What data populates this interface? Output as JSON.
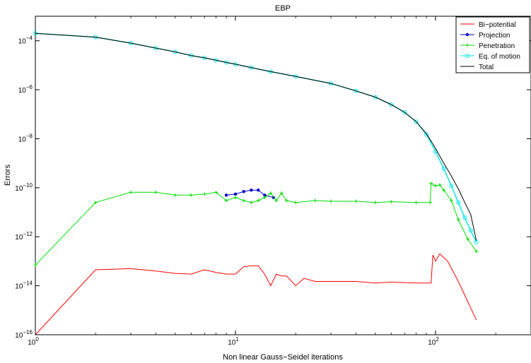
{
  "chart_data": {
    "type": "line",
    "title": "EBP",
    "xlabel": "Non linear Gauss−Seidel iterations",
    "ylabel": "Errors",
    "xscale": "log",
    "yscale": "log",
    "xlim": [
      1,
      300
    ],
    "ylim": [
      1e-16,
      0.001
    ],
    "grid": false,
    "legend": "top-right",
    "xticks": [
      {
        "value": 1,
        "base": "10",
        "exp": "0"
      },
      {
        "value": 10,
        "base": "10",
        "exp": "1"
      },
      {
        "value": 100,
        "base": "10",
        "exp": "2"
      }
    ],
    "yticks": [
      {
        "value": 0.0001,
        "base": "10",
        "exp": "−4"
      },
      {
        "value": 1e-06,
        "base": "10",
        "exp": "−6"
      },
      {
        "value": 1e-08,
        "base": "10",
        "exp": "−8"
      },
      {
        "value": 1e-10,
        "base": "10",
        "exp": "−10"
      },
      {
        "value": 1e-12,
        "base": "10",
        "exp": "−12"
      },
      {
        "value": 1e-14,
        "base": "10",
        "exp": "−14"
      },
      {
        "value": 1e-16,
        "base": "10",
        "exp": "−16"
      }
    ],
    "series": [
      {
        "name": "Bi−potential",
        "color": "#ff0000",
        "marker": "none",
        "points": [
          [
            1,
            1e-16
          ],
          [
            2,
            4.5e-14
          ],
          [
            3,
            5e-14
          ],
          [
            4,
            4e-14
          ],
          [
            5,
            3.2e-14
          ],
          [
            6,
            3e-14
          ],
          [
            7,
            4.5e-14
          ],
          [
            8,
            3.5e-14
          ],
          [
            9,
            3e-14
          ],
          [
            10,
            3e-14
          ],
          [
            11,
            6e-14
          ],
          [
            12,
            6.5e-14
          ],
          [
            13,
            6.5e-14
          ],
          [
            14,
            3e-14
          ],
          [
            15,
            1e-14
          ],
          [
            16,
            3e-14
          ],
          [
            17,
            2.5e-14
          ],
          [
            18,
            2.5e-14
          ],
          [
            20,
            1e-14
          ],
          [
            22,
            2e-14
          ],
          [
            25,
            1.5e-14
          ],
          [
            30,
            1.5e-14
          ],
          [
            40,
            1.5e-14
          ],
          [
            50,
            1.3e-14
          ],
          [
            60,
            1.4e-14
          ],
          [
            80,
            1.3e-14
          ],
          [
            95,
            1.3e-14
          ],
          [
            97,
            1.8e-13
          ],
          [
            100,
            1e-13
          ],
          [
            105,
            2e-13
          ],
          [
            115,
            1e-13
          ],
          [
            130,
            1.5e-14
          ],
          [
            160,
            4e-16
          ]
        ]
      },
      {
        "name": "Projection",
        "color": "#0000cc",
        "marker": "dot",
        "points": [
          [
            9,
            5e-11
          ],
          [
            10,
            5.5e-11
          ],
          [
            11,
            7e-11
          ],
          [
            12,
            8e-11
          ],
          [
            13,
            8e-11
          ],
          [
            14,
            5e-11
          ],
          [
            15.5,
            4e-11
          ]
        ]
      },
      {
        "name": "Penetration",
        "color": "#00dd00",
        "marker": "plus",
        "points": [
          [
            1,
            7e-14
          ],
          [
            2,
            2.5e-11
          ],
          [
            3,
            6.5e-11
          ],
          [
            4,
            6.5e-11
          ],
          [
            5,
            5e-11
          ],
          [
            6,
            5e-11
          ],
          [
            7,
            5.5e-11
          ],
          [
            8,
            6.5e-11
          ],
          [
            9,
            3e-11
          ],
          [
            10,
            4e-11
          ],
          [
            11,
            3e-11
          ],
          [
            12,
            2.5e-11
          ],
          [
            13,
            3e-11
          ],
          [
            14,
            4e-11
          ],
          [
            15,
            6e-11
          ],
          [
            16,
            3e-11
          ],
          [
            17,
            6e-11
          ],
          [
            18,
            3e-11
          ],
          [
            20,
            2.5e-11
          ],
          [
            25,
            3e-11
          ],
          [
            30,
            2.8e-11
          ],
          [
            40,
            2.8e-11
          ],
          [
            50,
            2.5e-11
          ],
          [
            60,
            2.7e-11
          ],
          [
            80,
            2.5e-11
          ],
          [
            94,
            2.5e-11
          ],
          [
            95,
            1.5e-10
          ],
          [
            100,
            1.2e-10
          ],
          [
            105,
            1.3e-10
          ],
          [
            110,
            8e-11
          ],
          [
            120,
            3e-11
          ],
          [
            130,
            5e-12
          ],
          [
            145,
            8e-13
          ],
          [
            160,
            2.5e-13
          ]
        ]
      },
      {
        "name": "Eq. of motion",
        "color": "#00e5e5",
        "marker": "circle",
        "points": [
          [
            1,
            0.0002
          ],
          [
            2,
            0.00014
          ],
          [
            3,
            8e-05
          ],
          [
            4,
            5e-05
          ],
          [
            5,
            3.5e-05
          ],
          [
            6,
            2.5e-05
          ],
          [
            7,
            2e-05
          ],
          [
            8,
            1.6e-05
          ],
          [
            9,
            1.3e-05
          ],
          [
            10,
            1.1e-05
          ],
          [
            12,
            8e-06
          ],
          [
            15,
            5.5e-06
          ],
          [
            20,
            3.5e-06
          ],
          [
            30,
            1.8e-06
          ],
          [
            40,
            9e-07
          ],
          [
            50,
            5e-07
          ],
          [
            60,
            2.5e-07
          ],
          [
            70,
            1.2e-07
          ],
          [
            80,
            5e-08
          ],
          [
            90,
            1.5e-08
          ],
          [
            100,
            3e-09
          ],
          [
            110,
            6e-10
          ],
          [
            120,
            1.2e-10
          ],
          [
            130,
            2.5e-11
          ],
          [
            140,
            6e-12
          ],
          [
            150,
            1.8e-12
          ],
          [
            160,
            6e-13
          ]
        ]
      },
      {
        "name": "Total",
        "color": "#000000",
        "marker": "none",
        "points": [
          [
            1,
            0.0002
          ],
          [
            2,
            0.00014
          ],
          [
            3,
            8e-05
          ],
          [
            4,
            5e-05
          ],
          [
            5,
            3.5e-05
          ],
          [
            6,
            2.5e-05
          ],
          [
            7,
            2e-05
          ],
          [
            8,
            1.6e-05
          ],
          [
            9,
            1.3e-05
          ],
          [
            10,
            1.1e-05
          ],
          [
            12,
            8e-06
          ],
          [
            15,
            5.5e-06
          ],
          [
            20,
            3.5e-06
          ],
          [
            30,
            1.8e-06
          ],
          [
            40,
            9e-07
          ],
          [
            50,
            5e-07
          ],
          [
            60,
            2.5e-07
          ],
          [
            70,
            1.2e-07
          ],
          [
            80,
            5e-08
          ],
          [
            90,
            1.6e-08
          ],
          [
            95,
            8e-09
          ],
          [
            100,
            4e-09
          ],
          [
            110,
            1e-09
          ],
          [
            120,
            3e-10
          ],
          [
            130,
            9e-11
          ],
          [
            140,
            2.5e-11
          ],
          [
            150,
            8e-12
          ],
          [
            160,
            7e-13
          ]
        ]
      }
    ]
  }
}
